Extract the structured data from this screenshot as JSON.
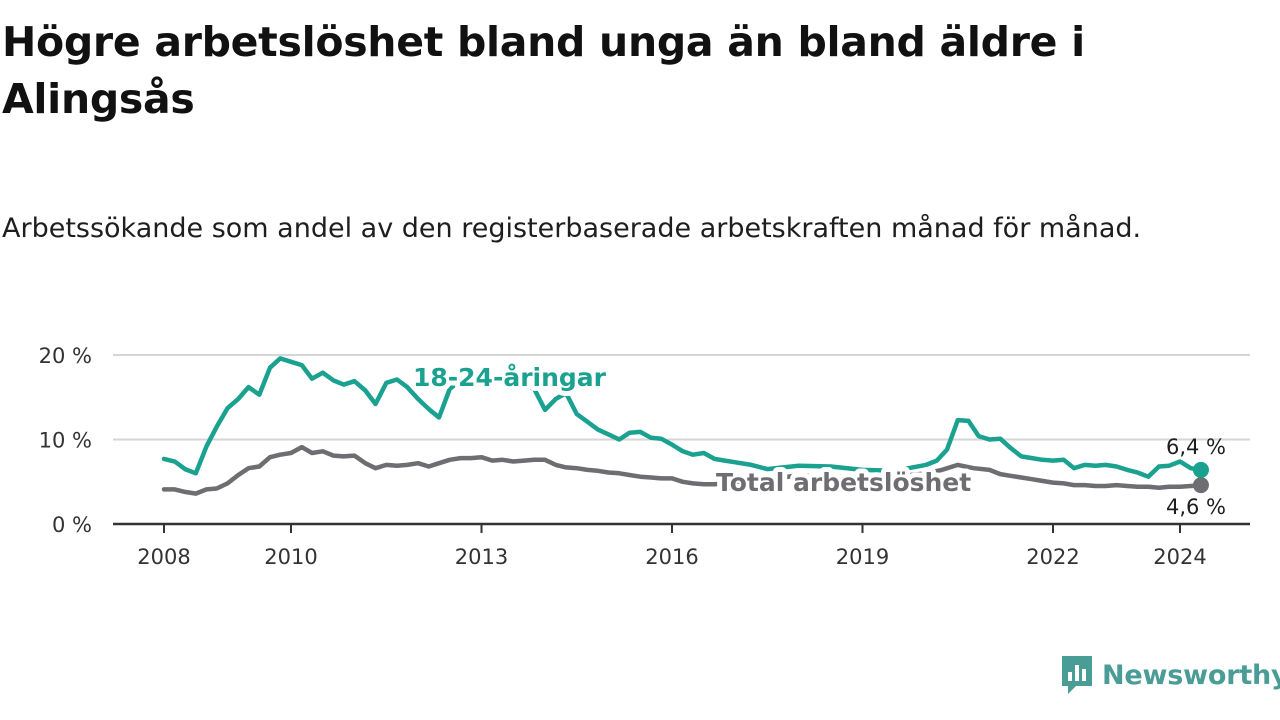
{
  "title": "Högre arbetslöshet bland unga än bland äldre i Alingsås",
  "subtitle": "Arbetssökande som andel av den registerbaserade arbetskraften månad för månad.",
  "brand": {
    "name": "Newsworthy",
    "icon": "newsworthy-logo-icon",
    "color": "#4a9c96"
  },
  "chart_data": {
    "type": "line",
    "title": "Högre arbetslöshet bland unga än bland äldre i Alingsås",
    "subtitle": "Arbetssökande som andel av den registerbaserade arbetskraften månad för månad.",
    "xlabel": "",
    "ylabel": "",
    "xlim": [
      2007.9,
      2025.5
    ],
    "ylim": [
      0,
      20
    ],
    "grid": true,
    "y_ticks": [
      {
        "value": 0,
        "label": "0 %"
      },
      {
        "value": 10,
        "label": "10 %"
      },
      {
        "value": 20,
        "label": "20 %"
      }
    ],
    "x_ticks": [
      {
        "value": 2008,
        "label": "2008"
      },
      {
        "value": 2010,
        "label": "2010"
      },
      {
        "value": 2013,
        "label": "2013"
      },
      {
        "value": 2016,
        "label": "2016"
      },
      {
        "value": 2019,
        "label": "2019"
      },
      {
        "value": 2022,
        "label": "2022"
      },
      {
        "value": 2024,
        "label": "2024"
      }
    ],
    "series": [
      {
        "name": "Total arbetslöshet",
        "label": "Total arbetslöshet",
        "color": "#6e6d72",
        "end_label": "4,6 %",
        "end_value": 4.6,
        "x": [
          2008.0,
          2008.17,
          2008.33,
          2008.5,
          2008.67,
          2008.83,
          2009.0,
          2009.17,
          2009.33,
          2009.5,
          2009.67,
          2009.83,
          2010.0,
          2010.17,
          2010.33,
          2010.5,
          2010.67,
          2010.83,
          2011.0,
          2011.17,
          2011.33,
          2011.5,
          2011.67,
          2011.83,
          2012.0,
          2012.17,
          2012.33,
          2012.5,
          2012.67,
          2012.83,
          2013.0,
          2013.17,
          2013.33,
          2013.5,
          2013.67,
          2013.83,
          2014.0,
          2014.17,
          2014.33,
          2014.5,
          2014.67,
          2014.83,
          2015.0,
          2015.17,
          2015.33,
          2015.5,
          2015.67,
          2015.83,
          2016.0,
          2016.17,
          2016.33,
          2016.5,
          2016.67,
          2016.83,
          2017.0,
          2017.5,
          2018.0,
          2018.5,
          2019.0,
          2019.5,
          2020.0,
          2020.25,
          2020.5,
          2020.75,
          2021.0,
          2021.17,
          2021.33,
          2021.5,
          2021.67,
          2021.83,
          2022.0,
          2022.17,
          2022.33,
          2022.5,
          2022.67,
          2022.83,
          2023.0,
          2023.17,
          2023.33,
          2023.5,
          2023.67,
          2023.83,
          2024.0,
          2024.17,
          2024.33
        ],
        "y": [
          4.1,
          4.1,
          3.8,
          3.6,
          4.1,
          4.2,
          4.8,
          5.8,
          6.6,
          6.8,
          7.9,
          8.2,
          8.4,
          9.1,
          8.4,
          8.6,
          8.1,
          8.0,
          8.1,
          7.2,
          6.6,
          7.0,
          6.9,
          7.0,
          7.2,
          6.8,
          7.2,
          7.6,
          7.8,
          7.8,
          7.9,
          7.5,
          7.6,
          7.4,
          7.5,
          7.6,
          7.6,
          7.0,
          6.7,
          6.6,
          6.4,
          6.3,
          6.1,
          6.0,
          5.8,
          5.6,
          5.5,
          5.4,
          5.4,
          5.0,
          4.8,
          4.7,
          4.7,
          4.8,
          5.0,
          5.2,
          5.8,
          5.5,
          5.7,
          5.6,
          6.0,
          6.4,
          7.0,
          6.6,
          6.4,
          5.9,
          5.7,
          5.5,
          5.3,
          5.1,
          4.9,
          4.8,
          4.6,
          4.6,
          4.5,
          4.5,
          4.6,
          4.5,
          4.4,
          4.4,
          4.3,
          4.4,
          4.4,
          4.5,
          4.6
        ]
      },
      {
        "name": "18-24-åringar",
        "label": "18-24-åringar",
        "color": "#1aa190",
        "end_label": "6,4 %",
        "end_value": 6.4,
        "x": [
          2008.0,
          2008.17,
          2008.33,
          2008.5,
          2008.67,
          2008.83,
          2009.0,
          2009.17,
          2009.33,
          2009.5,
          2009.67,
          2009.83,
          2010.0,
          2010.17,
          2010.33,
          2010.5,
          2010.67,
          2010.83,
          2011.0,
          2011.17,
          2011.33,
          2011.5,
          2011.67,
          2011.83,
          2012.0,
          2012.17,
          2012.33,
          2012.5,
          2012.67,
          2012.83,
          2013.0,
          2013.17,
          2013.33,
          2013.5,
          2013.67,
          2013.83,
          2014.0,
          2014.17,
          2014.33,
          2014.5,
          2014.67,
          2014.83,
          2015.0,
          2015.17,
          2015.33,
          2015.5,
          2015.67,
          2015.83,
          2016.0,
          2016.17,
          2016.33,
          2016.5,
          2016.67,
          2016.83,
          2017.0,
          2017.25,
          2017.5,
          2017.75,
          2018.0,
          2018.5,
          2019.0,
          2019.5,
          2020.0,
          2020.17,
          2020.33,
          2020.5,
          2020.67,
          2020.83,
          2021.0,
          2021.17,
          2021.33,
          2021.5,
          2021.67,
          2021.83,
          2022.0,
          2022.17,
          2022.33,
          2022.5,
          2022.67,
          2022.83,
          2023.0,
          2023.17,
          2023.33,
          2023.5,
          2023.67,
          2023.83,
          2024.0,
          2024.17,
          2024.33
        ],
        "y": [
          7.7,
          7.4,
          6.5,
          6.0,
          9.2,
          11.5,
          13.7,
          14.8,
          16.2,
          15.3,
          18.5,
          19.6,
          19.2,
          18.8,
          17.2,
          17.9,
          17.0,
          16.5,
          16.9,
          15.8,
          14.2,
          16.7,
          17.1,
          16.2,
          14.8,
          13.6,
          12.6,
          16.0,
          17.0,
          17.2,
          16.9,
          17.1,
          17.0,
          16.8,
          16.5,
          16.0,
          13.5,
          14.8,
          15.5,
          13.0,
          12.1,
          11.2,
          10.6,
          10.0,
          10.8,
          10.9,
          10.2,
          10.1,
          9.4,
          8.6,
          8.2,
          8.4,
          7.7,
          7.5,
          7.3,
          7.0,
          6.5,
          6.7,
          6.9,
          6.8,
          6.4,
          6.3,
          7.0,
          7.5,
          8.8,
          12.3,
          12.2,
          10.4,
          10.0,
          10.1,
          9.0,
          8.0,
          7.8,
          7.6,
          7.5,
          7.6,
          6.6,
          7.0,
          6.9,
          7.0,
          6.8,
          6.4,
          6.1,
          5.6,
          6.8,
          6.9,
          7.4,
          6.6,
          6.4
        ]
      }
    ],
    "annotations": [
      "18-24-åringar",
      "Total arbetslöshet",
      "6,4 %",
      "4,6 %"
    ]
  }
}
